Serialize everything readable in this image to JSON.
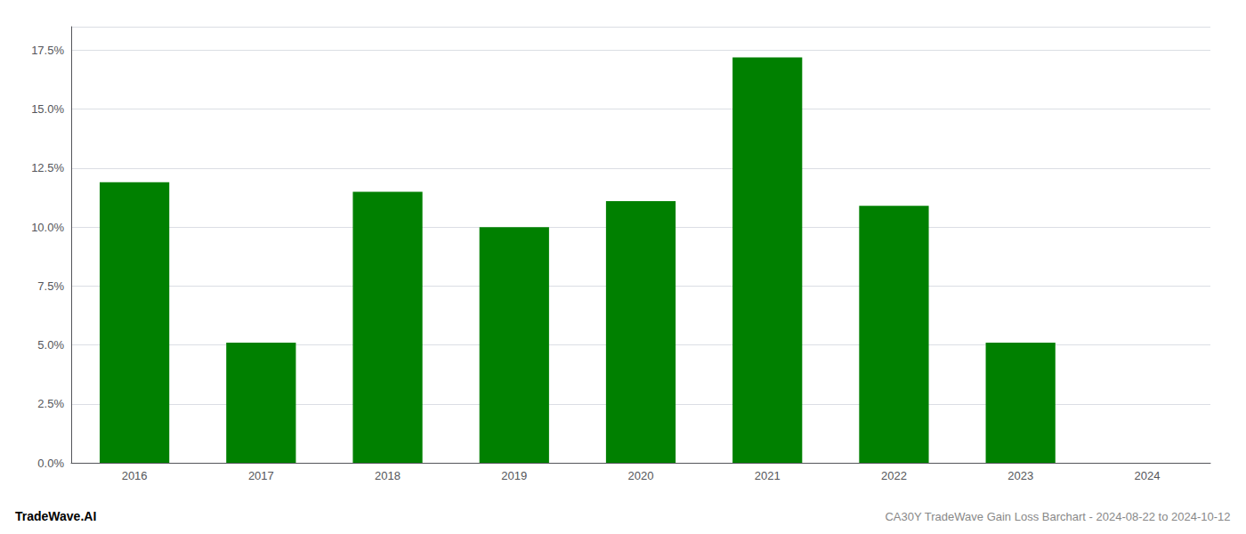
{
  "chart_data": {
    "type": "bar",
    "title": "CA30Y TradeWave Gain Loss Barchart - 2024-08-22 to 2024-10-12",
    "annotations": [
      "TradeWave.AI"
    ],
    "categories": [
      "2016",
      "2017",
      "2018",
      "2019",
      "2020",
      "2021",
      "2022",
      "2023",
      "2024"
    ],
    "values": [
      0.119,
      0.051,
      0.115,
      0.1,
      0.111,
      0.172,
      0.109,
      0.051,
      0.0
    ],
    "color": "#008000",
    "ylim": [
      0.0,
      0.185
    ],
    "yticks": [
      {
        "value": 0.0,
        "label": "0.0%"
      },
      {
        "value": 0.025,
        "label": "2.5%"
      },
      {
        "value": 0.05,
        "label": "5.0%"
      },
      {
        "value": 0.075,
        "label": "7.5%"
      },
      {
        "value": 0.1,
        "label": "10.0%"
      },
      {
        "value": 0.125,
        "label": "12.5%"
      },
      {
        "value": 0.15,
        "label": "15.0%"
      },
      {
        "value": 0.175,
        "label": "17.5%"
      }
    ],
    "grid": true
  }
}
